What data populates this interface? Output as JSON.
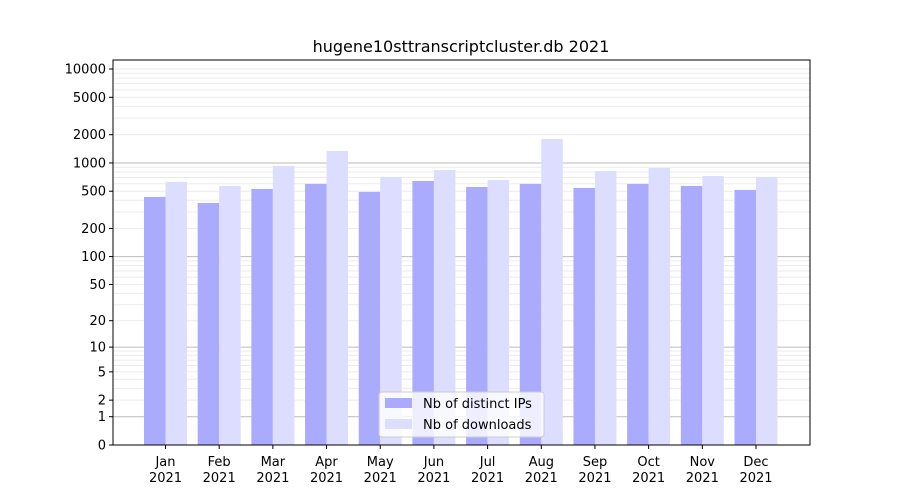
{
  "chart_data": {
    "type": "bar",
    "title": "hugene10sttranscriptcluster.db 2021",
    "xlabel": "",
    "ylabel": "",
    "yscale": "symlog",
    "ylim": [
      0,
      13000
    ],
    "yticks": [
      0,
      1,
      2,
      5,
      10,
      20,
      50,
      100,
      200,
      500,
      1000,
      2000,
      5000,
      10000
    ],
    "grid": true,
    "legend_position": "bottom-center",
    "categories": [
      "Jan\n2021",
      "Feb\n2021",
      "Mar\n2021",
      "Apr\n2021",
      "May\n2021",
      "Jun\n2021",
      "Jul\n2021",
      "Aug\n2021",
      "Sep\n2021",
      "Oct\n2021",
      "Nov\n2021",
      "Dec\n2021"
    ],
    "series": [
      {
        "name": "Nb of distinct IPs",
        "color": "#aaaaff",
        "values": [
          435,
          375,
          529,
          598,
          491,
          643,
          555,
          598,
          542,
          598,
          569,
          516
        ]
      },
      {
        "name": "Nb of downloads",
        "color": "#ddddff",
        "values": [
          628,
          569,
          929,
          1342,
          710,
          842,
          659,
          1800,
          822,
          884,
          727,
          710
        ]
      }
    ]
  }
}
